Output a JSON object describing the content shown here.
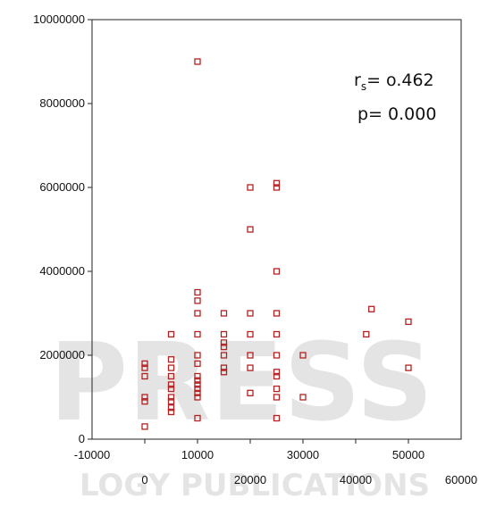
{
  "chart_data": {
    "type": "scatter",
    "title": "",
    "xlabel": "",
    "ylabel": "",
    "xlim": [
      -10000,
      60000
    ],
    "ylim": [
      0,
      10000000
    ],
    "x_tick_values": [
      -10000,
      0,
      10000,
      20000,
      30000,
      40000,
      50000,
      60000
    ],
    "x_tick_labels": [
      "-10000",
      "0",
      "10000",
      "20000",
      "30000",
      "40000",
      "50000",
      "60000"
    ],
    "y_tick_values": [
      0,
      2000000,
      4000000,
      6000000,
      8000000,
      10000000
    ],
    "y_tick_labels": [
      "0",
      "2000000",
      "4000000",
      "6000000",
      "8000000",
      "10000000"
    ],
    "grid": false,
    "marker": "hollow-square",
    "marker_color": "#b22222",
    "series": [
      {
        "points": [
          [
            0,
            300000
          ],
          [
            0,
            900000
          ],
          [
            0,
            1000000
          ],
          [
            0,
            1500000
          ],
          [
            0,
            1700000
          ],
          [
            0,
            1800000
          ],
          [
            5000,
            650000
          ],
          [
            5000,
            750000
          ],
          [
            5000,
            900000
          ],
          [
            5000,
            1000000
          ],
          [
            5000,
            1200000
          ],
          [
            5000,
            1300000
          ],
          [
            5000,
            1500000
          ],
          [
            5000,
            1700000
          ],
          [
            5000,
            1900000
          ],
          [
            5000,
            2500000
          ],
          [
            10000,
            500000
          ],
          [
            10000,
            1000000
          ],
          [
            10000,
            1100000
          ],
          [
            10000,
            1200000
          ],
          [
            10000,
            1300000
          ],
          [
            10000,
            1400000
          ],
          [
            10000,
            1500000
          ],
          [
            10000,
            1800000
          ],
          [
            10000,
            2000000
          ],
          [
            10000,
            2500000
          ],
          [
            10000,
            3000000
          ],
          [
            10000,
            3300000
          ],
          [
            10000,
            3500000
          ],
          [
            10000,
            9000000
          ],
          [
            15000,
            1600000
          ],
          [
            15000,
            1700000
          ],
          [
            15000,
            2000000
          ],
          [
            15000,
            2200000
          ],
          [
            15000,
            2300000
          ],
          [
            15000,
            2500000
          ],
          [
            15000,
            3000000
          ],
          [
            20000,
            1100000
          ],
          [
            20000,
            1700000
          ],
          [
            20000,
            2000000
          ],
          [
            20000,
            2500000
          ],
          [
            20000,
            3000000
          ],
          [
            20000,
            5000000
          ],
          [
            20000,
            6000000
          ],
          [
            25000,
            500000
          ],
          [
            25000,
            1000000
          ],
          [
            25000,
            1200000
          ],
          [
            25000,
            1500000
          ],
          [
            25000,
            1600000
          ],
          [
            25000,
            2000000
          ],
          [
            25000,
            2500000
          ],
          [
            25000,
            3000000
          ],
          [
            25000,
            4000000
          ],
          [
            25000,
            6000000
          ],
          [
            25000,
            6100000
          ],
          [
            30000,
            1000000
          ],
          [
            30000,
            2000000
          ],
          [
            42000,
            2500000
          ],
          [
            43000,
            3100000
          ],
          [
            50000,
            1700000
          ],
          [
            50000,
            2800000
          ]
        ]
      }
    ],
    "annotation": {
      "r_label": "r",
      "r_subscript": "s",
      "r_value": "= o.462",
      "p_label": "p= 0.000"
    },
    "watermark": {
      "big": "PRESS",
      "small": "LOGY PUBLICATIONS"
    }
  }
}
